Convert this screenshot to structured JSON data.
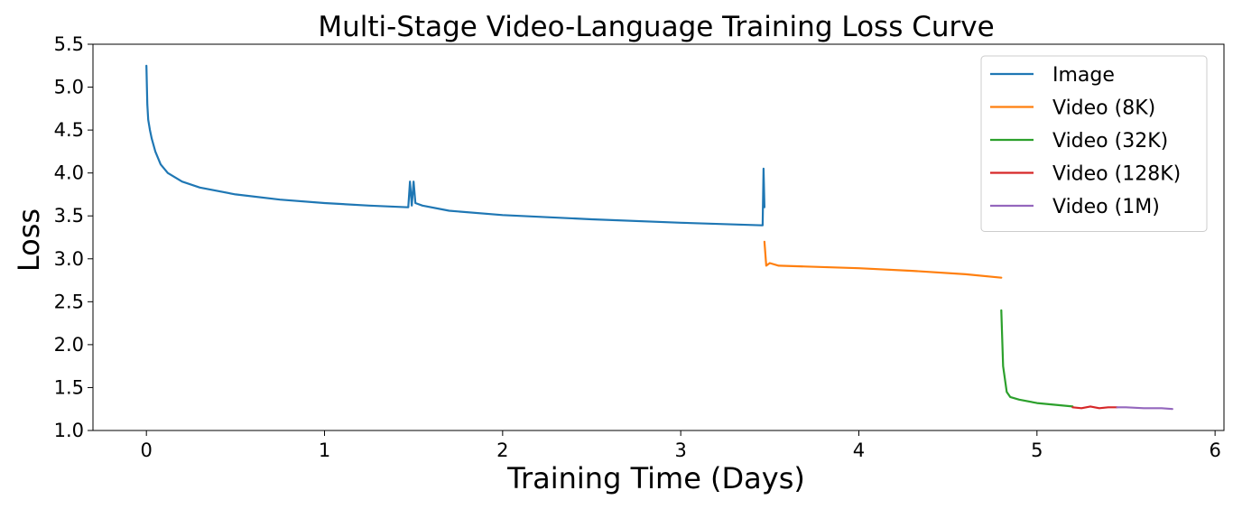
{
  "chart_data": {
    "type": "line",
    "title": "Multi-Stage Video-Language Training Loss Curve",
    "xlabel": "Training Time (Days)",
    "ylabel": "Loss",
    "xlim": [
      -0.3,
      6.05
    ],
    "ylim": [
      1.0,
      5.5
    ],
    "xticks": [
      0,
      1,
      2,
      3,
      4,
      5,
      6
    ],
    "xtick_labels": [
      "0",
      "1",
      "2",
      "3",
      "4",
      "5",
      "6"
    ],
    "yticks": [
      1.0,
      1.5,
      2.0,
      2.5,
      3.0,
      3.5,
      4.0,
      4.5,
      5.0,
      5.5
    ],
    "ytick_labels": [
      "1.0",
      "1.5",
      "2.0",
      "2.5",
      "3.0",
      "3.5",
      "4.0",
      "4.5",
      "5.0",
      "5.5"
    ],
    "grid": false,
    "legend_position": "top-right",
    "series": [
      {
        "name": "Image",
        "color": "#1f77b4",
        "x": [
          0,
          0.005,
          0.01,
          0.02,
          0.03,
          0.05,
          0.08,
          0.12,
          0.2,
          0.3,
          0.5,
          0.75,
          1.0,
          1.25,
          1.47,
          1.48,
          1.49,
          1.5,
          1.51,
          1.55,
          1.7,
          2.0,
          2.5,
          3.0,
          3.46,
          3.465,
          3.47
        ],
        "y": [
          5.25,
          4.8,
          4.62,
          4.5,
          4.4,
          4.25,
          4.1,
          4.0,
          3.9,
          3.83,
          3.75,
          3.69,
          3.65,
          3.62,
          3.6,
          3.9,
          3.62,
          3.9,
          3.65,
          3.62,
          3.56,
          3.51,
          3.46,
          3.42,
          3.39,
          4.05,
          3.6
        ]
      },
      {
        "name": "Video (8K)",
        "color": "#ff7f0e",
        "x": [
          3.47,
          3.48,
          3.5,
          3.55,
          3.7,
          4.0,
          4.3,
          4.6,
          4.8
        ],
        "y": [
          3.2,
          2.92,
          2.95,
          2.92,
          2.91,
          2.89,
          2.86,
          2.82,
          2.78
        ]
      },
      {
        "name": "Video (32K)",
        "color": "#2ca02c",
        "x": [
          4.8,
          4.81,
          4.83,
          4.85,
          4.9,
          5.0,
          5.1,
          5.2
        ],
        "y": [
          2.4,
          1.75,
          1.45,
          1.39,
          1.36,
          1.32,
          1.3,
          1.28
        ]
      },
      {
        "name": "Video (128K)",
        "color": "#d62728",
        "x": [
          5.2,
          5.25,
          5.3,
          5.35,
          5.4,
          5.45
        ],
        "y": [
          1.27,
          1.26,
          1.28,
          1.26,
          1.27,
          1.27
        ]
      },
      {
        "name": "Video (1M)",
        "color": "#9467bd",
        "x": [
          5.45,
          5.5,
          5.6,
          5.7,
          5.76
        ],
        "y": [
          1.27,
          1.27,
          1.26,
          1.26,
          1.25
        ]
      }
    ]
  }
}
